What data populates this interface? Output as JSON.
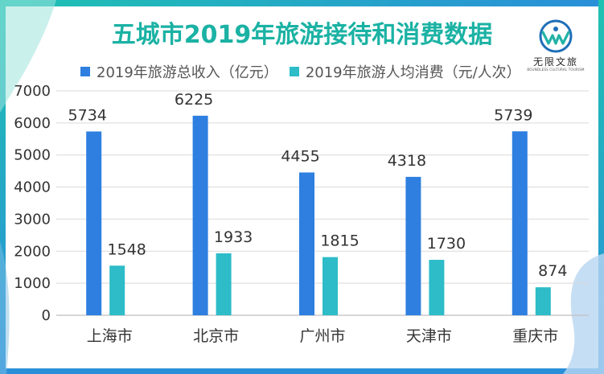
{
  "colors": {
    "series1": "#2e7fe0",
    "series2": "#2dbcc8",
    "title": "#1bb2a4",
    "frame_teal": "#22c1b0",
    "frame_blue": "#2d8ad8"
  },
  "logo": {
    "icon": "wave-circle-logo-icon",
    "text": "无限文旅",
    "subtext": "BOUNDLESS CULTURAL TOURISM"
  },
  "chart_data": {
    "type": "bar",
    "title": "五城市2019年旅游接待和消费数据",
    "xlabel": "",
    "ylabel": "",
    "categories": [
      "上海市",
      "北京市",
      "广州市",
      "天津市",
      "重庆市"
    ],
    "series": [
      {
        "name": "2019年旅游总收入（亿元）",
        "values": [
          5734,
          6225,
          4455,
          4318,
          5739
        ]
      },
      {
        "name": "2019年旅游人均消费（元/人次）",
        "values": [
          1548,
          1933,
          1815,
          1730,
          874
        ]
      }
    ],
    "ylim": [
      0,
      7000
    ],
    "yticks": [
      0,
      1000,
      2000,
      3000,
      4000,
      5000,
      6000,
      7000
    ],
    "grid": true,
    "legend_position": "top"
  }
}
